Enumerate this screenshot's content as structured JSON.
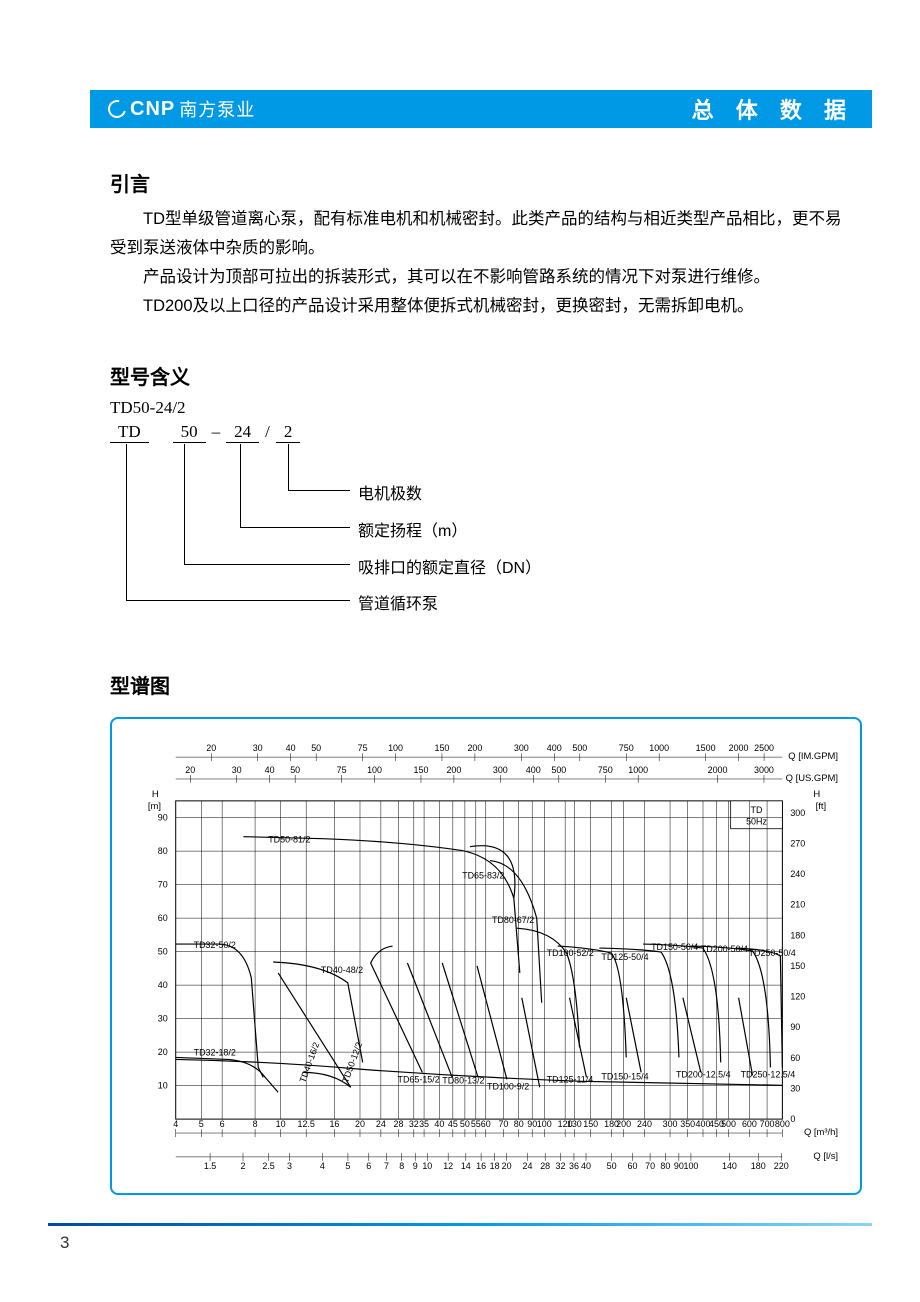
{
  "header": {
    "brand_en": "CNP",
    "brand_cn": "南方泵业",
    "title": "总 体 数 据"
  },
  "intro": {
    "title": "引言",
    "para1": "TD型单级管道离心泵，配有标准电机和机械密封。此类产品的结构与相近类型产品相比，更不易受到泵送液体中杂质的影响。",
    "para2": "产品设计为顶部可拉出的拆装形式，其可以在不影响管路系统的情况下对泵进行维修。",
    "para3": "TD200及以上口径的产品设计采用整体便拆式机械密封，更换密封，无需拆卸电机。"
  },
  "model": {
    "title": "型号含义",
    "example": "TD50-24/2",
    "parts": {
      "p1": "TD",
      "p2": "50",
      "sep1": "–",
      "p3": "24",
      "sep2": "/",
      "p4": "2"
    },
    "labels": {
      "l4": "电机极数",
      "l3": "额定扬程（m）",
      "l2": "吸排口的额定直径（DN）",
      "l1": "管道循环泵"
    }
  },
  "spectrum": {
    "title": "型谱图"
  },
  "chart": {
    "colors": {
      "border": "#0099e5",
      "grid": "#000000",
      "text": "#000000",
      "curve": "#000000",
      "bg": "#ffffff"
    },
    "title_box": {
      "line1": "TD",
      "line2": "50Hz"
    },
    "axes": {
      "y_left": {
        "label": "H",
        "unit": "[m]",
        "ticks": [
          10,
          20,
          30,
          40,
          50,
          60,
          70,
          80,
          90
        ]
      },
      "y_right": {
        "label": "H",
        "unit": "[ft]",
        "ticks": [
          0,
          30,
          60,
          90,
          120,
          150,
          180,
          210,
          240,
          270,
          300
        ]
      },
      "x_bottom1": {
        "unit": "Q [m³/h]",
        "ticks": [
          4,
          5,
          6,
          8,
          10,
          12.5,
          16,
          20,
          24,
          28,
          32,
          35,
          40,
          45,
          50,
          55,
          60,
          70,
          80,
          90,
          100,
          120,
          130,
          150,
          180,
          200,
          240,
          300,
          350,
          400,
          450,
          500,
          600,
          700,
          800
        ]
      },
      "x_bottom2": {
        "unit": "Q [l/s]",
        "ticks": [
          1.5,
          2,
          2.5,
          3,
          4,
          5,
          6,
          7,
          8,
          9,
          10,
          12,
          14,
          16,
          18,
          20,
          24,
          28,
          32,
          36,
          40,
          50,
          60,
          70,
          80,
          90,
          100,
          140,
          180,
          220
        ]
      },
      "x_top1": {
        "unit": "Q [IM.GPM]",
        "ticks": [
          20,
          30,
          40,
          50,
          75,
          100,
          150,
          200,
          300,
          400,
          500,
          750,
          1000,
          1500,
          2000,
          2500
        ]
      },
      "x_top2": {
        "unit": "Q [US.GPM]",
        "ticks": [
          20,
          30,
          40,
          50,
          75,
          100,
          150,
          200,
          300,
          400,
          500,
          750,
          1000,
          2000,
          3000
        ]
      }
    },
    "curve_labels": [
      "TD32-50/2",
      "TD32-18/2",
      "TD50-81/2",
      "TD40-48/2",
      "TD40-16/2",
      "TD50-12/2",
      "TD65-83/2",
      "TD65-15/2",
      "TD80-67/2",
      "TD80-13/2",
      "TD100-52/2",
      "TD100-9/2",
      "TD125-50/4",
      "TD125-11/4",
      "TD150-50/4",
      "TD150-15/4",
      "TD200-50/4",
      "TD200-12.5/4",
      "TD250-50/4",
      "TD250-12.5/4"
    ]
  },
  "page_number": "3"
}
